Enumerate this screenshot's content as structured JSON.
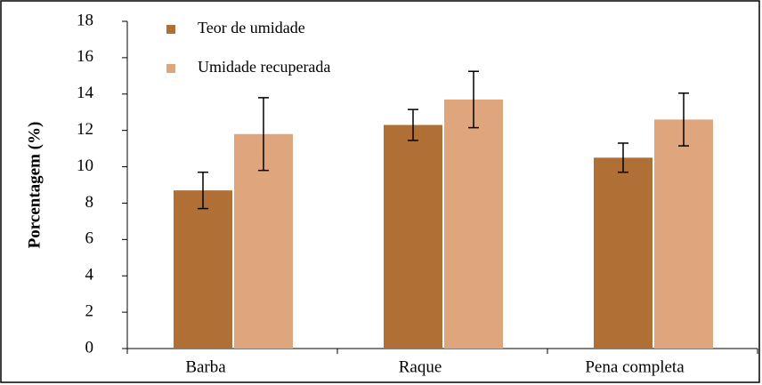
{
  "chart_data": {
    "type": "bar",
    "y_label": "Porcentagem (%)",
    "categories": [
      "Barba",
      "Raque",
      "Pena completa"
    ],
    "series": [
      {
        "name": "Teor de umidade",
        "color": "#b07035",
        "values": [
          8.7,
          12.3,
          10.5
        ],
        "errors": [
          1.0,
          0.85,
          0.8
        ]
      },
      {
        "name": "Umidade recuperada",
        "color": "#dfa67e",
        "values": [
          11.8,
          13.7,
          12.6
        ],
        "errors": [
          2.0,
          1.55,
          1.45
        ]
      }
    ],
    "ylim": [
      0,
      18
    ],
    "yticks": [
      0,
      2,
      4,
      6,
      8,
      10,
      12,
      14,
      16,
      18
    ],
    "legend": "upper-left"
  }
}
